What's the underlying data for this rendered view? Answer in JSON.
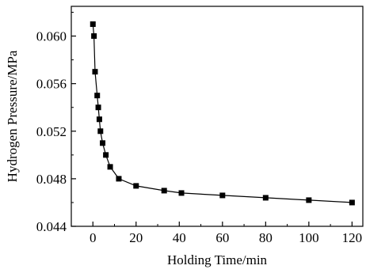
{
  "chart_data": {
    "type": "line",
    "title": "",
    "xlabel": "Holding Time/min",
    "ylabel": "Hydrogen Pressure/MPa",
    "xlim": [
      -10,
      125
    ],
    "ylim": [
      0.044,
      0.0625
    ],
    "x_ticks": [
      0,
      20,
      40,
      60,
      80,
      100,
      120
    ],
    "x_tick_labels": [
      "0",
      "20",
      "40",
      "60",
      "80",
      "100",
      "120"
    ],
    "y_ticks": [
      0.044,
      0.048,
      0.052,
      0.056,
      0.06
    ],
    "y_tick_labels": [
      "0.044",
      "0.048",
      "0.052",
      "0.056",
      "0.060"
    ],
    "grid": false,
    "legend": "none",
    "series": [
      {
        "marker": "square",
        "color": "#000000",
        "x": [
          0,
          0.5,
          1,
          2,
          2.5,
          3,
          3.5,
          4.5,
          6,
          8,
          12,
          20,
          33,
          41,
          60,
          80,
          100,
          120
        ],
        "y": [
          0.061,
          0.06,
          0.057,
          0.055,
          0.054,
          0.053,
          0.052,
          0.051,
          0.05,
          0.049,
          0.048,
          0.0474,
          0.047,
          0.0468,
          0.0466,
          0.0464,
          0.0462,
          0.046
        ]
      }
    ]
  }
}
